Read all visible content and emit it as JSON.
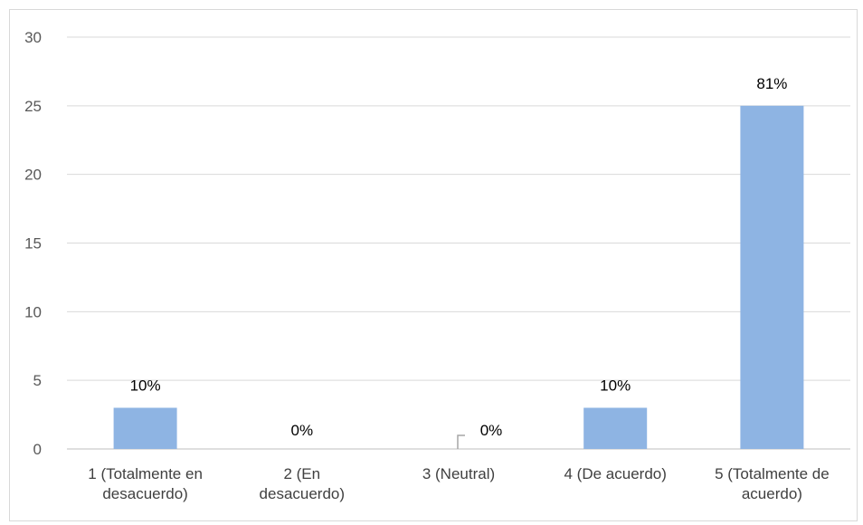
{
  "chart_data": {
    "type": "bar",
    "categories": [
      [
        "1 (Totalmente en",
        "desacuerdo)"
      ],
      [
        "2 (En",
        "desacuerdo)"
      ],
      [
        "3 (Neutral)"
      ],
      [
        "4 (De acuerdo)"
      ],
      [
        "5 (Totalmente de",
        "acuerdo)"
      ]
    ],
    "values": [
      3,
      0,
      0,
      3,
      25
    ],
    "data_labels": [
      "10%",
      "0%",
      "0%",
      "10%",
      "81%"
    ],
    "yticks": [
      "0",
      "5",
      "10",
      "15",
      "20",
      "25",
      "30"
    ],
    "ylim": [
      0,
      30
    ],
    "grid": true,
    "bar_color": "#8eb4e3",
    "grid_color": "#d9d9d9",
    "axis_color": "#bfbfbf",
    "legend": "none"
  }
}
